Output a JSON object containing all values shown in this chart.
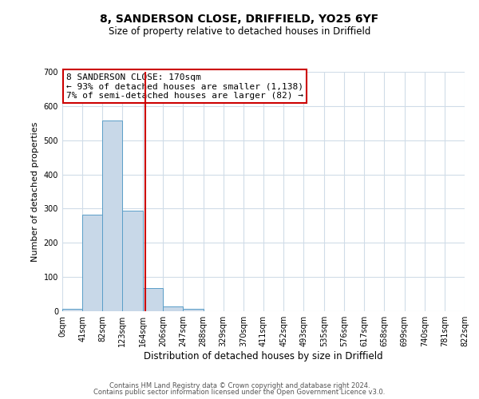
{
  "title": "8, SANDERSON CLOSE, DRIFFIELD, YO25 6YF",
  "subtitle": "Size of property relative to detached houses in Driffield",
  "xlabel": "Distribution of detached houses by size in Driffield",
  "ylabel": "Number of detached properties",
  "bar_edges": [
    0,
    41,
    82,
    123,
    164,
    206,
    247,
    288,
    329,
    370,
    411,
    452,
    493,
    535,
    576,
    617,
    658,
    699,
    740,
    781,
    822
  ],
  "bar_heights": [
    7,
    282,
    558,
    293,
    68,
    15,
    8,
    0,
    0,
    0,
    0,
    0,
    0,
    0,
    0,
    0,
    0,
    0,
    0,
    0
  ],
  "bar_color": "#c8d8e8",
  "bar_edge_color": "#5a9ec8",
  "property_line_x": 170,
  "property_line_color": "#cc0000",
  "ylim": [
    0,
    700
  ],
  "yticks": [
    0,
    100,
    200,
    300,
    400,
    500,
    600,
    700
  ],
  "xtick_labels": [
    "0sqm",
    "41sqm",
    "82sqm",
    "123sqm",
    "164sqm",
    "206sqm",
    "247sqm",
    "288sqm",
    "329sqm",
    "370sqm",
    "411sqm",
    "452sqm",
    "493sqm",
    "535sqm",
    "576sqm",
    "617sqm",
    "658sqm",
    "699sqm",
    "740sqm",
    "781sqm",
    "822sqm"
  ],
  "annotation_text": "8 SANDERSON CLOSE: 170sqm\n← 93% of detached houses are smaller (1,138)\n7% of semi-detached houses are larger (82) →",
  "annotation_box_color": "#ffffff",
  "annotation_box_edge": "#cc0000",
  "footer_line1": "Contains HM Land Registry data © Crown copyright and database right 2024.",
  "footer_line2": "Contains public sector information licensed under the Open Government Licence v3.0.",
  "background_color": "#ffffff",
  "grid_color": "#d0dce8",
  "title_fontsize": 10,
  "subtitle_fontsize": 8.5,
  "xlabel_fontsize": 8.5,
  "ylabel_fontsize": 8,
  "tick_fontsize": 7,
  "annotation_fontsize": 8,
  "footer_fontsize": 6
}
